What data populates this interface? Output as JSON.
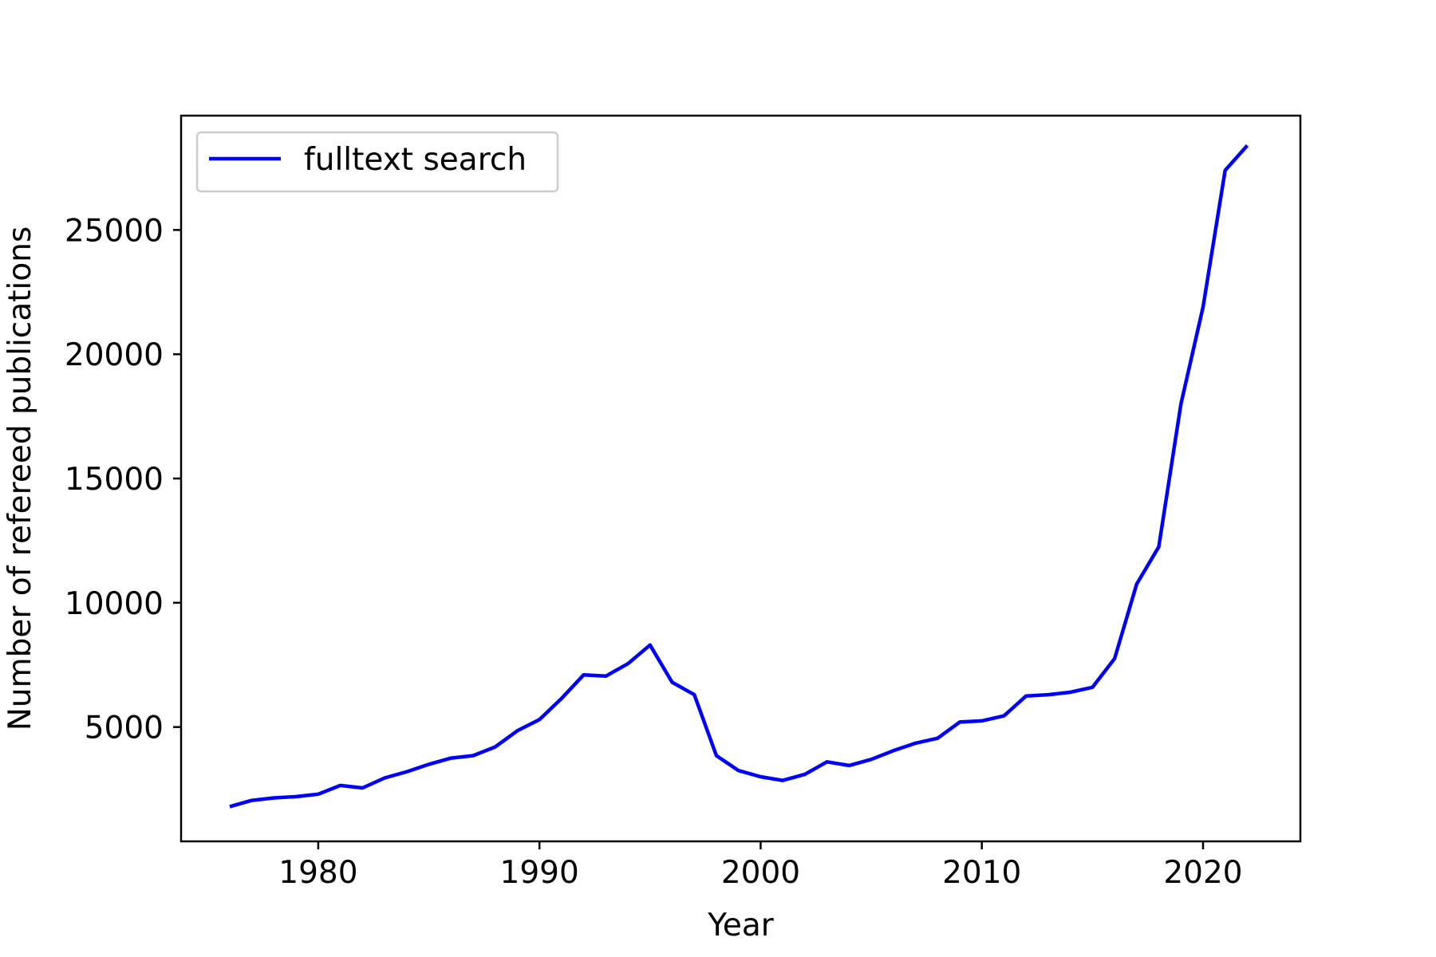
{
  "chart_data": {
    "type": "line",
    "title": "",
    "xlabel": "Year",
    "ylabel": "Number of refereed publications",
    "xlim": [
      1973.8,
      2024.4
    ],
    "ylim": [
      400,
      29600
    ],
    "xticks": [
      1980,
      1990,
      2000,
      2010,
      2020
    ],
    "yticks": [
      5000,
      10000,
      15000,
      20000,
      25000
    ],
    "grid": false,
    "legend": {
      "position": "top-left"
    },
    "series": [
      {
        "name": "fulltext search",
        "color": "#0000ff",
        "x": [
          1976,
          1977,
          1978,
          1979,
          1980,
          1981,
          1982,
          1983,
          1984,
          1985,
          1986,
          1987,
          1988,
          1989,
          1990,
          1991,
          1992,
          1993,
          1994,
          1995,
          1996,
          1997,
          1998,
          1999,
          2000,
          2001,
          2002,
          2003,
          2004,
          2005,
          2006,
          2007,
          2008,
          2009,
          2010,
          2011,
          2012,
          2013,
          2014,
          2015,
          2016,
          2017,
          2018,
          2019,
          2020,
          2021,
          2022
        ],
        "values": [
          1800,
          2050,
          2150,
          2200,
          2300,
          2650,
          2550,
          2950,
          3200,
          3500,
          3750,
          3850,
          4200,
          4850,
          5300,
          6150,
          7100,
          7050,
          7550,
          8300,
          6800,
          6300,
          3850,
          3250,
          3000,
          2850,
          3100,
          3600,
          3450,
          3700,
          4050,
          4350,
          4550,
          5200,
          5250,
          5450,
          6250,
          6300,
          6400,
          6600,
          7750,
          10750,
          12250,
          18000,
          21900,
          27400,
          28400
        ]
      }
    ]
  }
}
